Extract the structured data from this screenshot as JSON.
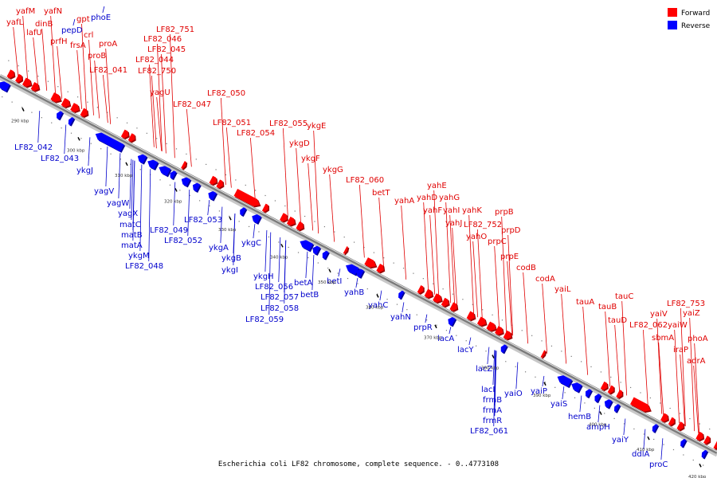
{
  "legend": [
    {
      "label": "Forward",
      "color": "#ff0000"
    },
    {
      "label": "Reverse",
      "color": "#0000ff"
    }
  ],
  "caption": "Escherichia coli LF82 chromosome, complete sequence. - 0..4773108",
  "ticks": [
    "290 kbp",
    "300 kbp",
    "310 kbp",
    "320 kbp",
    "330 kbp",
    "340 kbp",
    "350 kbp",
    "360 kbp",
    "370 kbp",
    "380 kbp",
    "390 kbp",
    "400 kbp",
    "410 kbp",
    "420 kbp"
  ],
  "forward_genes": [
    "yafM",
    "yafL",
    "dinB",
    "yafN",
    "lafU",
    "gpt",
    "prfH",
    "crl",
    "frsA",
    "proA",
    "proB",
    "LF82_041",
    "LF82_751",
    "LF82_046",
    "LF82_045",
    "LF82_044",
    "LF82_750",
    "yagU",
    "LF82_047",
    "LF82_050",
    "LF82_051",
    "LF82_054",
    "LF82_055",
    "ykgE",
    "ykgD",
    "ykgF",
    "ykgG",
    "LF82_060",
    "betT",
    "yahA",
    "yahE",
    "yahD",
    "yahG",
    "yahF",
    "yahI",
    "yahJ",
    "yahK",
    "LF82_752",
    "prpB",
    "yahO",
    "prpC",
    "prpD",
    "prpE",
    "codB",
    "codA",
    "yaiL",
    "tauA",
    "tauC",
    "tauB",
    "tauD",
    "LF82_753",
    "yaiV",
    "yaiZ",
    "LF82_062",
    "yaiW",
    "sbmA",
    "phoA",
    "iraP",
    "adrA"
  ],
  "reverse_genes": [
    "pepD",
    "phoE",
    "LF82_042",
    "LF82_043",
    "ykgJ",
    "yagV",
    "yagW",
    "yagX",
    "matC",
    "matB",
    "matA",
    "ykgM",
    "LF82_048",
    "LF82_049",
    "LF82_052",
    "LF82_053",
    "ykgA",
    "ykgB",
    "ykgI",
    "ykgC",
    "ykgH",
    "LF82_056",
    "LF82_057",
    "LF82_058",
    "LF82_059",
    "betA",
    "betB",
    "betI",
    "yahB",
    "yahC",
    "yahN",
    "prpR",
    "lacA",
    "lacY",
    "lacZ",
    "lacI",
    "frmB",
    "frmA",
    "frmR",
    "LF82_061",
    "yaiO",
    "yaiP",
    "yaiS",
    "hemB",
    "ampH",
    "yaiY",
    "ddlA",
    "proC"
  ]
}
